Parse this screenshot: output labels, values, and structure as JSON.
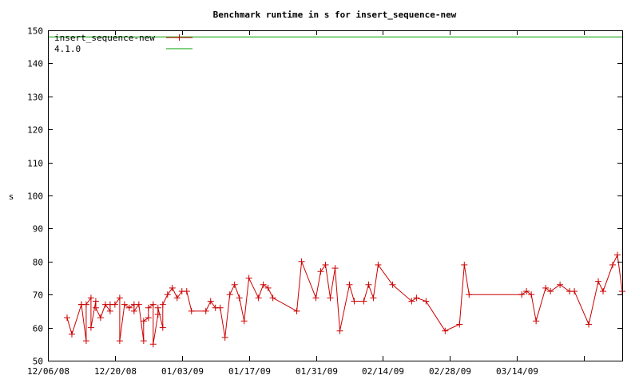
{
  "chart_data": {
    "type": "line",
    "title": "Benchmark runtime in s for insert_sequence-new",
    "xlabel": "",
    "ylabel": "s",
    "xlim": [
      "2008-12-06",
      "2009-04-05"
    ],
    "ylim": [
      50,
      150
    ],
    "yticks": [
      50,
      60,
      70,
      80,
      90,
      100,
      110,
      120,
      130,
      140,
      150
    ],
    "xticks": [
      {
        "date": "2008-12-06",
        "label": "12/06/08"
      },
      {
        "date": "2008-12-20",
        "label": "12/20/08"
      },
      {
        "date": "2009-01-03",
        "label": "01/03/09"
      },
      {
        "date": "2009-01-17",
        "label": "01/17/09"
      },
      {
        "date": "2009-01-31",
        "label": "01/31/09"
      },
      {
        "date": "2009-02-14",
        "label": "02/14/09"
      },
      {
        "date": "2009-02-28",
        "label": "02/28/09"
      },
      {
        "date": "2009-03-14",
        "label": "03/14/09"
      },
      {
        "date": "2009-03-28",
        "label": ""
      },
      {
        "date": "2009-04-05",
        "label": ""
      }
    ],
    "grid": false,
    "legend": "top-left",
    "series": [
      {
        "name": "insert_sequence-new",
        "color": "#cc0000",
        "marker": "plus",
        "points": [
          [
            "2008-12-10",
            63
          ],
          [
            "2008-12-11",
            58
          ],
          [
            "2008-12-13",
            67
          ],
          [
            "2008-12-13",
            67
          ],
          [
            "2008-12-14",
            56
          ],
          [
            "2008-12-14",
            67
          ],
          [
            "2008-12-15",
            69
          ],
          [
            "2008-12-15",
            60
          ],
          [
            "2008-12-16",
            68
          ],
          [
            "2008-12-16",
            66
          ],
          [
            "2008-12-17",
            63
          ],
          [
            "2008-12-18",
            67
          ],
          [
            "2008-12-19",
            65
          ],
          [
            "2008-12-19",
            67
          ],
          [
            "2008-12-20",
            67
          ],
          [
            "2008-12-21",
            69
          ],
          [
            "2008-12-21",
            56
          ],
          [
            "2008-12-22",
            67
          ],
          [
            "2008-12-23",
            66
          ],
          [
            "2008-12-24",
            67
          ],
          [
            "2008-12-24",
            65
          ],
          [
            "2008-12-25",
            67
          ],
          [
            "2008-12-26",
            56
          ],
          [
            "2008-12-26",
            62
          ],
          [
            "2008-12-27",
            63
          ],
          [
            "2008-12-27",
            66
          ],
          [
            "2008-12-28",
            67
          ],
          [
            "2008-12-28",
            55
          ],
          [
            "2008-12-29",
            64
          ],
          [
            "2008-12-29",
            66
          ],
          [
            "2008-12-30",
            60
          ],
          [
            "2008-12-30",
            67
          ],
          [
            "2008-12-31",
            70
          ],
          [
            "2009-01-01",
            72
          ],
          [
            "2009-01-02",
            69
          ],
          [
            "2009-01-03",
            71
          ],
          [
            "2009-01-04",
            71
          ],
          [
            "2009-01-05",
            65
          ],
          [
            "2009-01-08",
            65
          ],
          [
            "2009-01-09",
            68
          ],
          [
            "2009-01-10",
            66
          ],
          [
            "2009-01-11",
            66
          ],
          [
            "2009-01-12",
            57
          ],
          [
            "2009-01-13",
            70
          ],
          [
            "2009-01-14",
            73
          ],
          [
            "2009-01-15",
            69
          ],
          [
            "2009-01-16",
            62
          ],
          [
            "2009-01-17",
            75
          ],
          [
            "2009-01-19",
            69
          ],
          [
            "2009-01-20",
            73
          ],
          [
            "2009-01-21",
            72
          ],
          [
            "2009-01-22",
            69
          ],
          [
            "2009-01-27",
            65
          ],
          [
            "2009-01-28",
            80
          ],
          [
            "2009-01-31",
            69
          ],
          [
            "2009-02-01",
            77
          ],
          [
            "2009-02-02",
            79
          ],
          [
            "2009-02-03",
            69
          ],
          [
            "2009-02-04",
            78
          ],
          [
            "2009-02-05",
            59
          ],
          [
            "2009-02-07",
            73
          ],
          [
            "2009-02-08",
            68
          ],
          [
            "2009-02-10",
            68
          ],
          [
            "2009-02-11",
            73
          ],
          [
            "2009-02-12",
            69
          ],
          [
            "2009-02-13",
            79
          ],
          [
            "2009-02-16",
            73
          ],
          [
            "2009-02-20",
            68
          ],
          [
            "2009-02-21",
            69
          ],
          [
            "2009-02-23",
            68
          ],
          [
            "2009-02-27",
            59
          ],
          [
            "2009-03-02",
            61
          ],
          [
            "2009-03-03",
            79
          ],
          [
            "2009-03-04",
            70
          ],
          [
            "2009-03-15",
            70
          ],
          [
            "2009-03-16",
            71
          ],
          [
            "2009-03-17",
            70
          ],
          [
            "2009-03-18",
            62
          ],
          [
            "2009-03-20",
            72
          ],
          [
            "2009-03-21",
            71
          ],
          [
            "2009-03-23",
            73
          ],
          [
            "2009-03-25",
            71
          ],
          [
            "2009-03-26",
            71
          ],
          [
            "2009-03-29",
            61
          ],
          [
            "2009-03-31",
            74
          ],
          [
            "2009-04-01",
            71
          ],
          [
            "2009-04-03",
            79
          ],
          [
            "2009-04-04",
            82
          ],
          [
            "2009-04-05",
            71
          ]
        ]
      },
      {
        "name": "4.1.0",
        "color": "#00a000",
        "marker": "none",
        "points": [
          [
            "2008-12-06",
            148
          ],
          [
            "2009-04-05",
            148
          ]
        ]
      }
    ]
  }
}
